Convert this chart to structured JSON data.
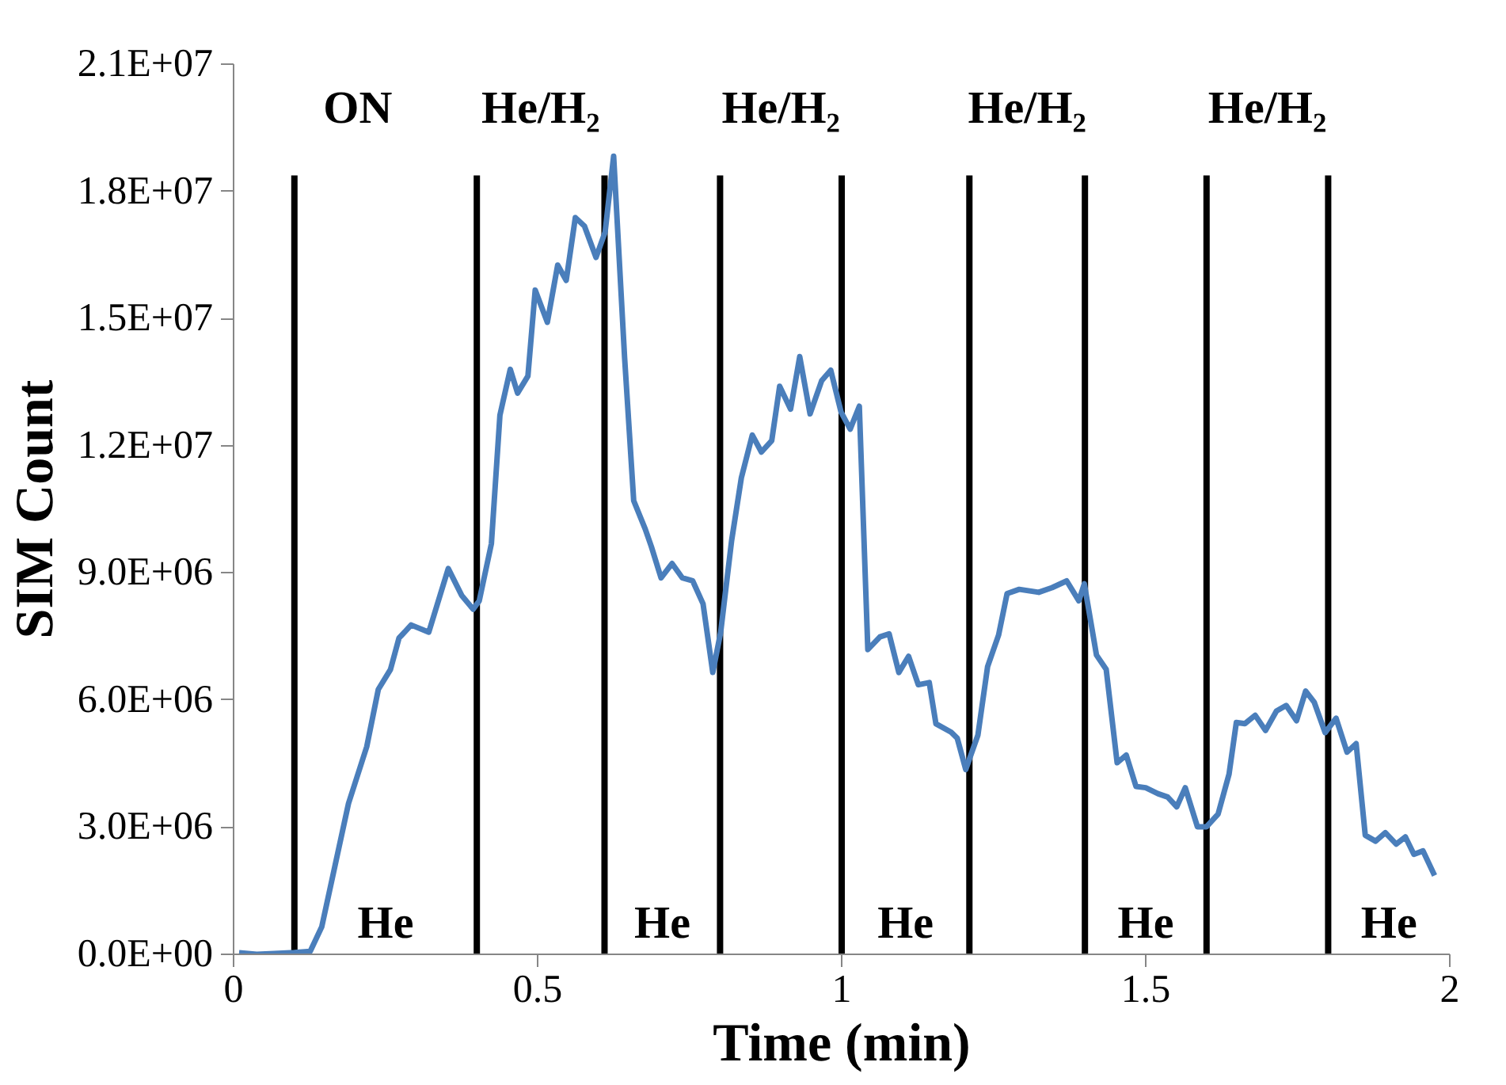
{
  "chart_data": {
    "type": "line",
    "xlabel": "Time (min)",
    "ylabel": "SIM Count",
    "xlim": [
      0,
      2
    ],
    "xticks": [
      0,
      0.5,
      1,
      1.5,
      2
    ],
    "ylim": [
      0,
      21000000
    ],
    "yticks": [
      {
        "value": 0,
        "label": "0.0E+00"
      },
      {
        "value": 3000000,
        "label": "3.0E+06"
      },
      {
        "value": 6000000,
        "label": "6.0E+06"
      },
      {
        "value": 9000000,
        "label": "9.0E+06"
      },
      {
        "value": 12000000,
        "label": "1.2E+07"
      },
      {
        "value": 15000000,
        "label": "1.5E+07"
      },
      {
        "value": 18000000,
        "label": "1.8E+07"
      },
      {
        "value": 21000000,
        "label": "2.1E+07"
      }
    ],
    "grid": false,
    "marker": "none",
    "line_style": "solid",
    "series": [
      {
        "color": "#4a7ebb",
        "x": [
          0.009,
          0.038,
          0.067,
          0.1,
          0.126,
          0.145,
          0.189,
          0.219,
          0.238,
          0.258,
          0.272,
          0.292,
          0.321,
          0.353,
          0.375,
          0.394,
          0.404,
          0.424,
          0.438,
          0.455,
          0.467,
          0.484,
          0.496,
          0.516,
          0.533,
          0.547,
          0.562,
          0.577,
          0.596,
          0.611,
          0.625,
          0.643,
          0.658,
          0.677,
          0.687,
          0.703,
          0.721,
          0.738,
          0.755,
          0.772,
          0.788,
          0.801,
          0.819,
          0.835,
          0.853,
          0.868,
          0.885,
          0.898,
          0.916,
          0.931,
          0.948,
          0.967,
          0.982,
          0.999,
          1.014,
          1.029,
          1.043,
          1.063,
          1.078,
          1.094,
          1.11,
          1.126,
          1.144,
          1.155,
          1.18,
          1.19,
          1.204,
          1.224,
          1.24,
          1.258,
          1.272,
          1.292,
          1.324,
          1.346,
          1.37,
          1.39,
          1.399,
          1.419,
          1.435,
          1.453,
          1.468,
          1.484,
          1.5,
          1.52,
          1.536,
          1.551,
          1.565,
          1.585,
          1.6,
          1.619,
          1.637,
          1.649,
          1.663,
          1.68,
          1.697,
          1.715,
          1.731,
          1.748,
          1.763,
          1.777,
          1.795,
          1.813,
          1.831,
          1.846,
          1.861,
          1.878,
          1.894,
          1.912,
          1.927,
          1.941,
          1.956,
          1.975
        ],
        "values": [
          40000,
          0,
          20000,
          40000,
          70000,
          650000,
          3560000,
          4900000,
          6250000,
          6720000,
          7460000,
          7770000,
          7600000,
          9100000,
          8470000,
          8140000,
          8340000,
          9690000,
          12720000,
          13800000,
          13240000,
          13640000,
          15670000,
          14910000,
          16260000,
          15900000,
          17380000,
          17180000,
          16440000,
          17040000,
          18830000,
          14080000,
          10700000,
          10030000,
          9620000,
          8880000,
          9220000,
          8880000,
          8810000,
          8270000,
          6650000,
          7600000,
          9760000,
          11240000,
          12250000,
          11850000,
          12120000,
          13400000,
          12860000,
          14100000,
          12750000,
          13530000,
          13780000,
          12790000,
          12390000,
          12930000,
          7190000,
          7490000,
          7560000,
          6650000,
          7030000,
          6360000,
          6410000,
          5440000,
          5240000,
          5100000,
          4360000,
          5170000,
          6790000,
          7530000,
          8510000,
          8610000,
          8540000,
          8650000,
          8810000,
          8340000,
          8740000,
          7060000,
          6720000,
          4520000,
          4700000,
          3960000,
          3930000,
          3790000,
          3710000,
          3480000,
          3930000,
          3010000,
          3010000,
          3310000,
          4250000,
          5470000,
          5440000,
          5640000,
          5280000,
          5740000,
          5870000,
          5510000,
          6210000,
          5950000,
          5230000,
          5570000,
          4770000,
          4970000,
          2810000,
          2670000,
          2870000,
          2600000,
          2770000,
          2360000,
          2440000,
          1860000
        ]
      }
    ],
    "ref_lines": [
      {
        "axis": "x",
        "value": 0.1,
        "color": "#000000"
      },
      {
        "axis": "x",
        "value": 0.4,
        "color": "#000000"
      },
      {
        "axis": "x",
        "value": 0.61,
        "color": "#000000"
      },
      {
        "axis": "x",
        "value": 0.8,
        "color": "#000000"
      },
      {
        "axis": "x",
        "value": 1.0,
        "color": "#000000"
      },
      {
        "axis": "x",
        "value": 1.21,
        "color": "#000000"
      },
      {
        "axis": "x",
        "value": 1.4,
        "color": "#000000"
      },
      {
        "axis": "x",
        "value": 1.6,
        "color": "#000000"
      },
      {
        "axis": "x",
        "value": 1.8,
        "color": "#000000"
      }
    ],
    "annotations": [
      "ON",
      "He",
      "He/H₂",
      "He",
      "He/H₂",
      "He",
      "He/H₂",
      "He",
      "He/H₂",
      "He"
    ]
  }
}
